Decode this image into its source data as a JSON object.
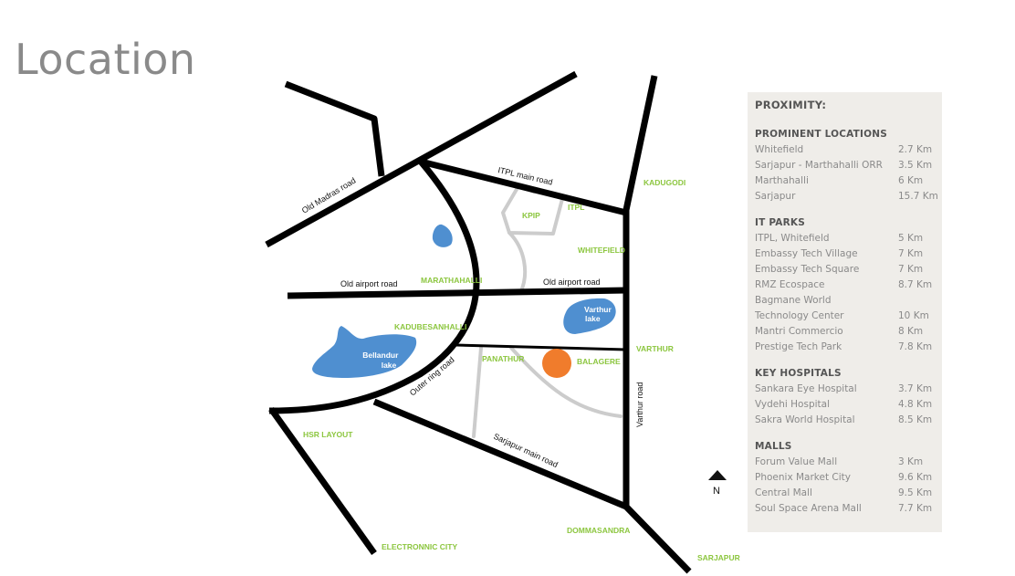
{
  "title": "Location",
  "map": {
    "road_labels": {
      "old_madras": "Old Madras road",
      "itpl_main": "ITPL main road",
      "old_airport_left": "Old airport road",
      "old_airport_right": "Old airport road",
      "outer_ring": "Outer ring road",
      "sarjapur_main": "Sarjapur main road",
      "varthur_road": "Varthur road"
    },
    "area_labels": {
      "kadugodi": "KADUGODI",
      "kpip": "KPIP",
      "itpl": "ITPL",
      "whitefield": "WHITEFIELD",
      "marathahalli": "MARATHAHALLI",
      "kadubesanhalli": "KADUBESANHALLI",
      "varthur": "VARTHUR",
      "panathur": "PANATHUR",
      "balagere": "BALAGERE",
      "hsr_layout": "HSR LAYOUT",
      "electronic_city": "ELECTRONNIC CITY",
      "dommasandra": "DOMMASANDRA",
      "sarjapur": "SARJAPUR"
    },
    "lakes": {
      "bellandur_line1": "Bellandur",
      "bellandur_line2": "lake",
      "varthur_line1": "Varthur",
      "varthur_line2": "lake"
    },
    "north": "N",
    "colors": {
      "road": "#000000",
      "minor_road": "#cccccc",
      "lake": "#4f8fd0",
      "site_marker": "#f07c2c",
      "area_label": "#8cc63f"
    }
  },
  "proximity": {
    "heading": "PROXIMITY:",
    "sections": [
      {
        "title": "PROMINENT LOCATIONS",
        "items": [
          {
            "name": "Whitefield",
            "distance": "2.7 Km"
          },
          {
            "name": "Sarjapur - Marthahalli ORR",
            "distance": "3.5 Km"
          },
          {
            "name": "Marthahalli",
            "distance": "6 Km"
          },
          {
            "name": "Sarjapur",
            "distance": "15.7 Km"
          }
        ]
      },
      {
        "title": "IT PARKS",
        "items": [
          {
            "name": "ITPL, Whitefield",
            "distance": "5 Km"
          },
          {
            "name": "Embassy Tech Village",
            "distance": "7 Km"
          },
          {
            "name": "Embassy Tech Square",
            "distance": "7 Km"
          },
          {
            "name": "RMZ Ecospace",
            "distance": "8.7 Km"
          },
          {
            "name": "Bagmane World",
            "distance": ""
          },
          {
            "name": "Technology Center",
            "distance": "10 Km"
          },
          {
            "name": "Mantri Commercio",
            "distance": "8 Km"
          },
          {
            "name": "Prestige Tech Park",
            "distance": "7.8 Km"
          }
        ]
      },
      {
        "title": "KEY HOSPITALS",
        "items": [
          {
            "name": "Sankara Eye Hospital",
            "distance": "3.7 Km"
          },
          {
            "name": "Vydehi Hospital",
            "distance": "4.8 Km"
          },
          {
            "name": "Sakra World Hospital",
            "distance": "8.5 Km"
          }
        ]
      },
      {
        "title": "MALLS",
        "items": [
          {
            "name": "Forum Value Mall",
            "distance": "3 Km"
          },
          {
            "name": "Phoenix Market City",
            "distance": "9.6 Km"
          },
          {
            "name": "Central Mall",
            "distance": "9.5 Km"
          },
          {
            "name": "Soul Space Arena Mall",
            "distance": "7.7 Km"
          }
        ]
      }
    ]
  }
}
